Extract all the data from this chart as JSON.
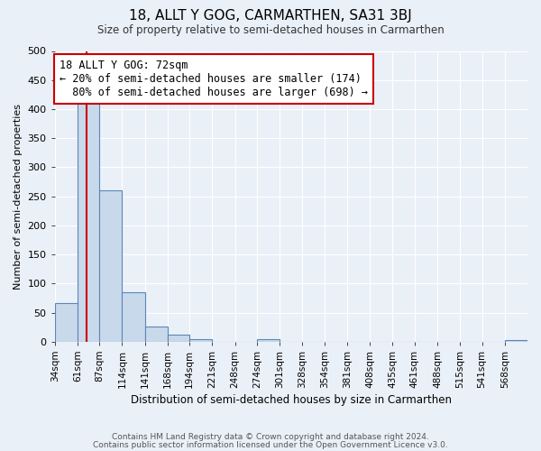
{
  "title": "18, ALLT Y GOG, CARMARTHEN, SA31 3BJ",
  "subtitle": "Size of property relative to semi-detached houses in Carmarthen",
  "xlabel": "Distribution of semi-detached houses by size in Carmarthen",
  "ylabel": "Number of semi-detached properties",
  "bin_labels": [
    "34sqm",
    "61sqm",
    "87sqm",
    "114sqm",
    "141sqm",
    "168sqm",
    "194sqm",
    "221sqm",
    "248sqm",
    "274sqm",
    "301sqm",
    "328sqm",
    "354sqm",
    "381sqm",
    "408sqm",
    "435sqm",
    "461sqm",
    "488sqm",
    "515sqm",
    "541sqm",
    "568sqm"
  ],
  "bin_edges": [
    34,
    61,
    87,
    114,
    141,
    168,
    194,
    221,
    248,
    274,
    301,
    328,
    354,
    381,
    408,
    435,
    461,
    488,
    515,
    541,
    568,
    595
  ],
  "bar_heights": [
    67,
    420,
    261,
    85,
    26,
    12,
    5,
    0,
    0,
    4,
    0,
    0,
    0,
    0,
    0,
    0,
    0,
    0,
    0,
    0,
    3
  ],
  "bar_color": "#c9d9ec",
  "bar_edge_color": "#5b87b5",
  "property_value": 72,
  "property_label": "18 ALLT Y GOG: 72sqm",
  "pct_smaller": 20,
  "count_smaller": 174,
  "pct_larger": 80,
  "count_larger": 698,
  "vline_color": "#cc0000",
  "annotation_box_edge_color": "#cc0000",
  "ylim": [
    0,
    500
  ],
  "yticks": [
    0,
    50,
    100,
    150,
    200,
    250,
    300,
    350,
    400,
    450,
    500
  ],
  "bg_color": "#eaf0f8",
  "footer1": "Contains HM Land Registry data © Crown copyright and database right 2024.",
  "footer2": "Contains public sector information licensed under the Open Government Licence v3.0."
}
